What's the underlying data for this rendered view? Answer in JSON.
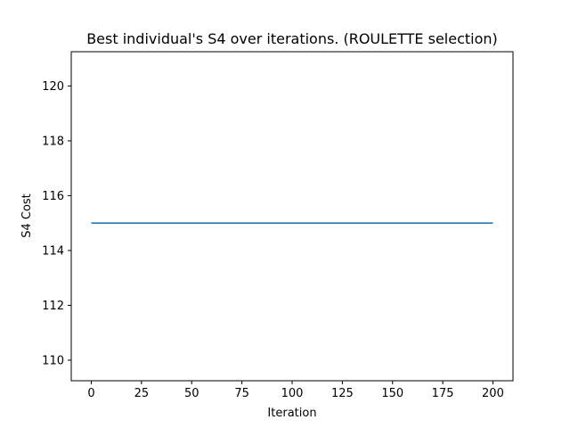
{
  "chart_data": {
    "type": "line",
    "title": "Best individual's S4 over iterations. (ROULETTE selection)",
    "xlabel": "Iteration",
    "ylabel": "S4 Cost",
    "xlim": [
      -10,
      210
    ],
    "ylim": [
      109.25,
      121.25
    ],
    "xticks": [
      0,
      25,
      50,
      75,
      100,
      125,
      150,
      175,
      200
    ],
    "yticks": [
      110,
      112,
      114,
      116,
      118,
      120
    ],
    "grid": false,
    "legend": "none",
    "series": [
      {
        "color": "#1f77b4",
        "x": [
          0,
          200
        ],
        "y": [
          115,
          115
        ]
      }
    ]
  }
}
